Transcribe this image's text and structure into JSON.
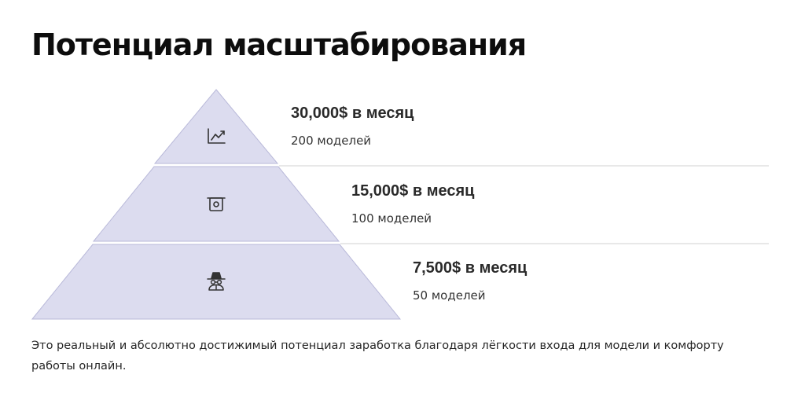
{
  "title": "Потенциал масштабирования",
  "colors": {
    "tier_fill": "#dcdcef",
    "tier_stroke": "#b9b9d9",
    "divider": "#d2d2d2",
    "icon": "#333333"
  },
  "tiers": [
    {
      "value": "30,000$ в месяц",
      "count": "200 моделей",
      "icon": "chart-up-icon"
    },
    {
      "value": "15,000$ в месяц",
      "count": "100 моделей",
      "icon": "cash-icon"
    },
    {
      "value": "7,500$ в месяц",
      "count": "50 моделей",
      "icon": "incognito-icon"
    }
  ],
  "description": "Это реальный и абсолютно достижимый потенциал заработка благодаря лёгкости входа для модели и комфорту работы онлайн."
}
